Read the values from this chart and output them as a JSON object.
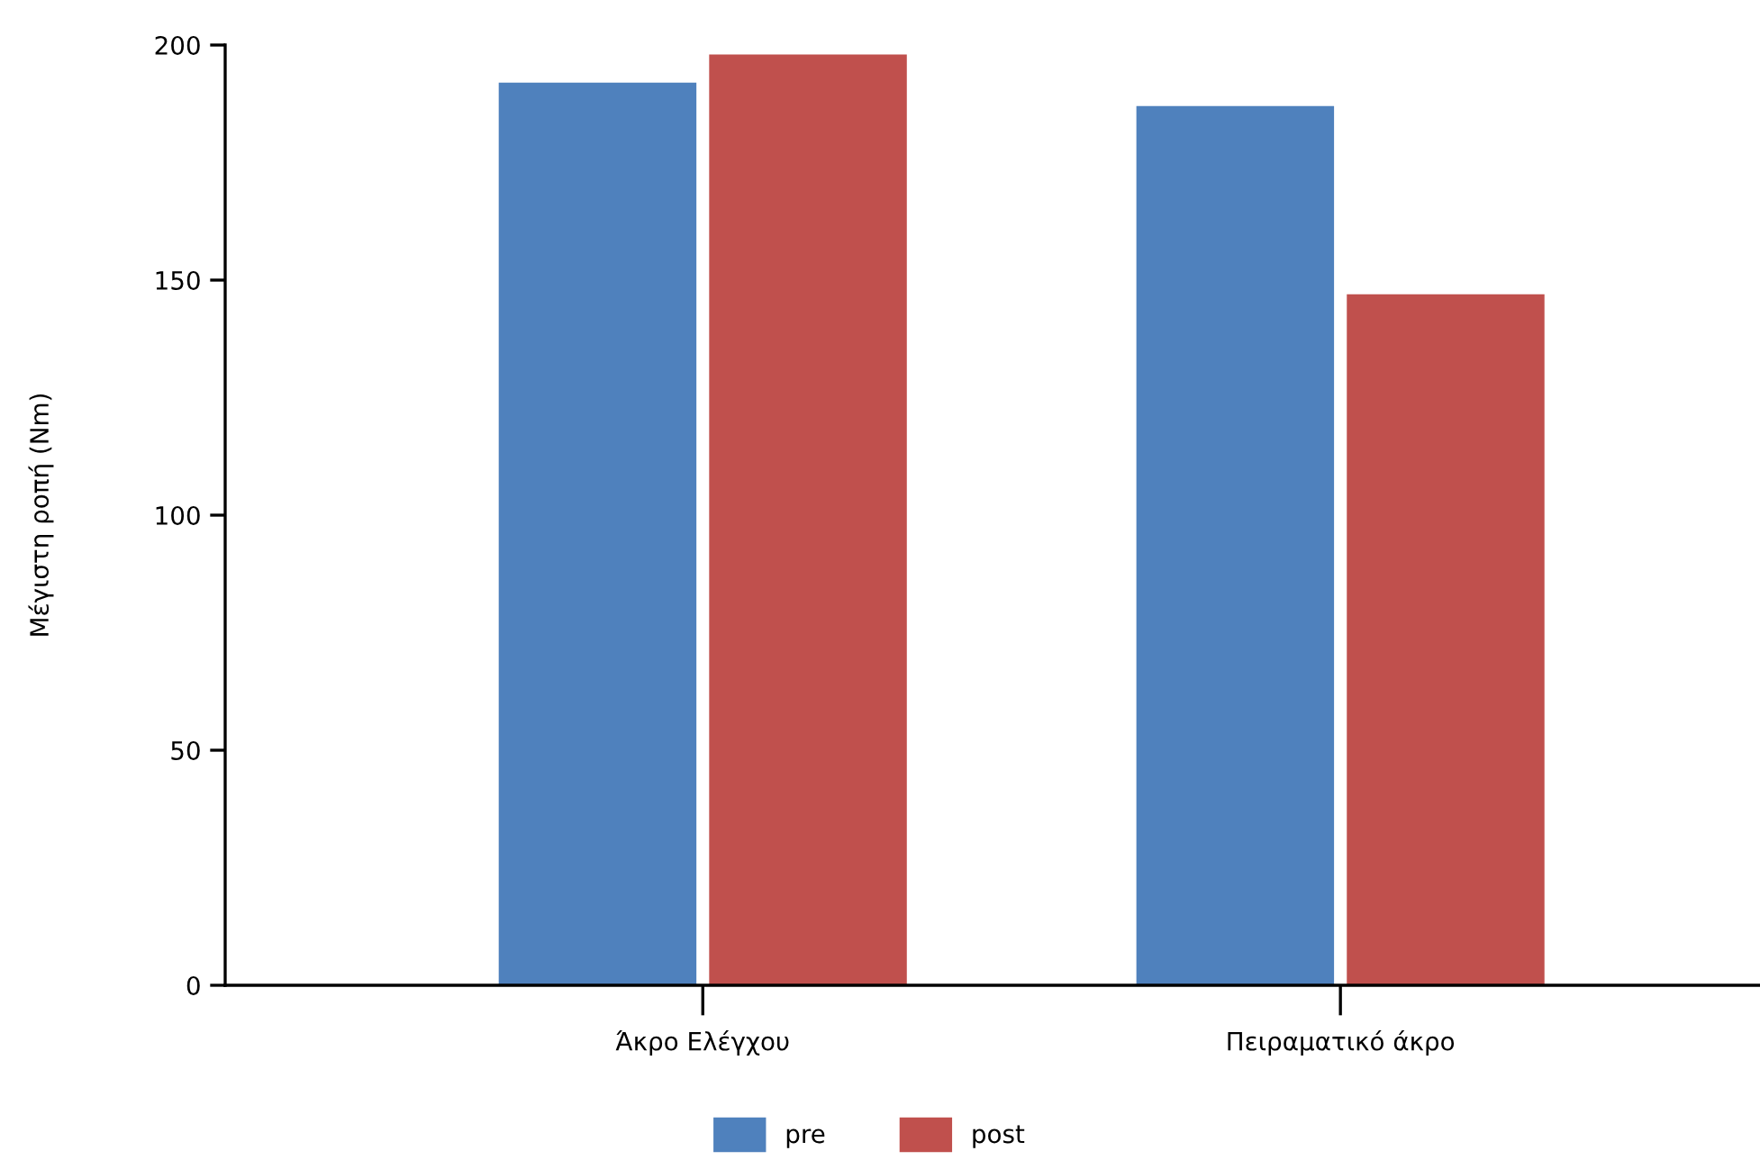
{
  "chart_data": {
    "type": "bar",
    "ylabel": "Μέγιστη ροπή (Nm)",
    "categories": [
      "Άκρο Ελέγχου",
      "Πειραματικό άκρο"
    ],
    "series": [
      {
        "name": "pre",
        "color": "#4f81bd",
        "values": [
          192,
          187
        ]
      },
      {
        "name": "post",
        "color": "#c0504d",
        "values": [
          198,
          147
        ]
      }
    ],
    "ylim": [
      0,
      200
    ],
    "yticks": [
      0,
      50,
      100,
      150,
      200
    ],
    "grid": false,
    "legend": "bottom"
  }
}
